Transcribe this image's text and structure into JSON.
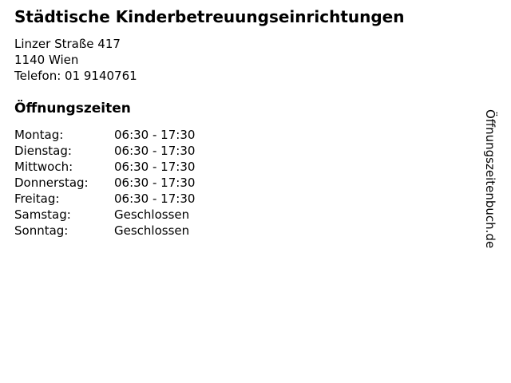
{
  "business": {
    "name": "Städtische Kinderbetreuungseinrichtungen",
    "address_line1": "Linzer Straße 417",
    "address_line2": "1140 Wien",
    "phone": "Telefon: 01 9140761"
  },
  "hours": {
    "heading": "Öffnungszeiten",
    "rows": [
      {
        "day": "Montag:",
        "time": "06:30 - 17:30"
      },
      {
        "day": "Dienstag:",
        "time": "06:30 - 17:30"
      },
      {
        "day": "Mittwoch:",
        "time": "06:30 - 17:30"
      },
      {
        "day": "Donnerstag:",
        "time": "06:30 - 17:30"
      },
      {
        "day": "Freitag:",
        "time": "06:30 - 17:30"
      },
      {
        "day": "Samstag:",
        "time": "Geschlossen"
      },
      {
        "day": "Sonntag:",
        "time": "Geschlossen"
      }
    ]
  },
  "watermark": {
    "text": "Öffnungszeitenbuch.de"
  },
  "colors": {
    "text": "#000000",
    "background": "#ffffff"
  }
}
